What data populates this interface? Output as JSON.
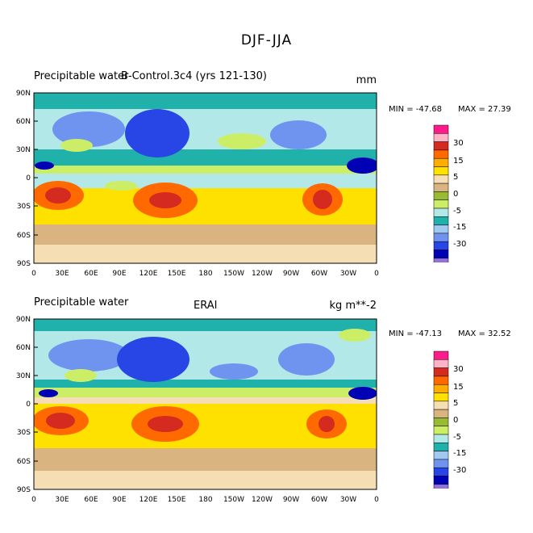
{
  "figure_title": "DJF-JJA",
  "legend": {
    "colors": [
      "#ff1a8c",
      "#ffb3c6",
      "#d42a1f",
      "#ff6a00",
      "#ffad00",
      "#ffe100",
      "#f5deb3",
      "#d9b380",
      "#99bb33",
      "#ccee66",
      "#b3e8e8",
      "#20b2aa",
      "#a0c8f0",
      "#6e94f0",
      "#2846e6",
      "#0000b4",
      "#9370db"
    ],
    "tick_labels": [
      "30",
      "15",
      "5",
      "0",
      "-5",
      "-15",
      "-30"
    ]
  },
  "chart_data": [
    {
      "type": "heatmap",
      "left_title": "Precipitable water",
      "center_title": "B-Control.3c4 (yrs 121-130)",
      "units": "mm",
      "min_label": "MIN = -47.68",
      "max_label": "MAX = 27.39",
      "min": -47.68,
      "max": 27.39,
      "y_tick_labels": [
        "90N",
        "60N",
        "30N",
        "0",
        "30S",
        "60S",
        "90S"
      ],
      "x_tick_labels": [
        "0",
        "30E",
        "60E",
        "90E",
        "120E",
        "150E",
        "180",
        "150W",
        "120W",
        "90W",
        "60W",
        "30W",
        "0"
      ]
    },
    {
      "type": "heatmap",
      "left_title": "Precipitable water",
      "center_title": "ERAI",
      "units": "kg m**-2",
      "min_label": "MIN = -47.13",
      "max_label": "MAX = 32.52",
      "min": -47.13,
      "max": 32.52,
      "y_tick_labels": [
        "90N",
        "60N",
        "30N",
        "0",
        "30S",
        "60S",
        "90S"
      ],
      "x_tick_labels": [
        "0",
        "30E",
        "60E",
        "90E",
        "120E",
        "150E",
        "180",
        "150W",
        "120W",
        "90W",
        "60W",
        "30W",
        "0"
      ]
    }
  ]
}
